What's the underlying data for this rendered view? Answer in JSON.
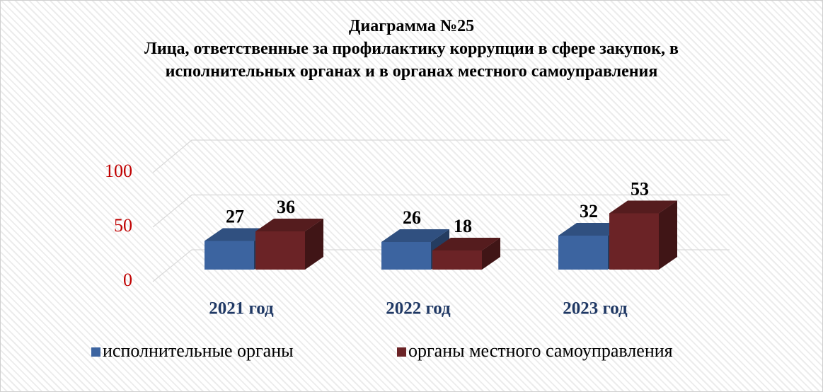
{
  "chart_data": {
    "type": "bar3d",
    "title": "Диаграмма №25",
    "subtitle": "Лица, ответственные за профилактику коррупции в сфере закупок, в исполнительных органах и в органах местного самоуправления",
    "categories": [
      "2021 год",
      "2022 год",
      "2023 год"
    ],
    "series": [
      {
        "name": "исполнительные органы",
        "color": "#3c64a0",
        "values": [
          27,
          26,
          32
        ]
      },
      {
        "name": "органы местного самоуправления",
        "color": "#6b2326",
        "values": [
          36,
          18,
          53
        ]
      }
    ],
    "ylim": [
      0,
      100
    ],
    "yticks": [
      0,
      50,
      100
    ],
    "grid": true,
    "legend": "bottom"
  }
}
